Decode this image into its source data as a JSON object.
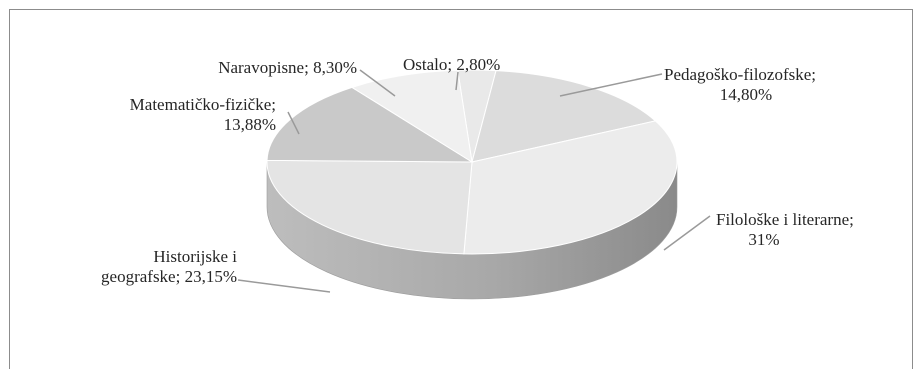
{
  "chart_data": {
    "type": "pie",
    "style": "3d",
    "title": "",
    "slices": [
      {
        "line1": "Ostalo; 2,80%",
        "line2": "",
        "value": 2.8,
        "color": "#e9e9e9"
      },
      {
        "line1": "Pedagoško-filozofske;",
        "line2": "14,80%",
        "value": 14.8,
        "color": "#dcdcdc"
      },
      {
        "line1": "Filološke i literarne;",
        "line2": "31%",
        "value": 31.0,
        "color": "#ececec"
      },
      {
        "line1": "Historijske i",
        "line2": "geografske; 23,15%",
        "value": 23.15,
        "color": "#e4e4e4"
      },
      {
        "line1": "Matematičko-fizičke;",
        "line2": "13,88%",
        "value": 13.88,
        "color": "#c9c9c9"
      },
      {
        "line1": "Naravopisne; 8,30%",
        "line2": "",
        "value": 8.3,
        "color": "#f0f0f0"
      }
    ],
    "side_color_dark": "#8a8a8a",
    "side_color_light": "#bdbdbd",
    "leader_color": "#9a9a9a"
  }
}
